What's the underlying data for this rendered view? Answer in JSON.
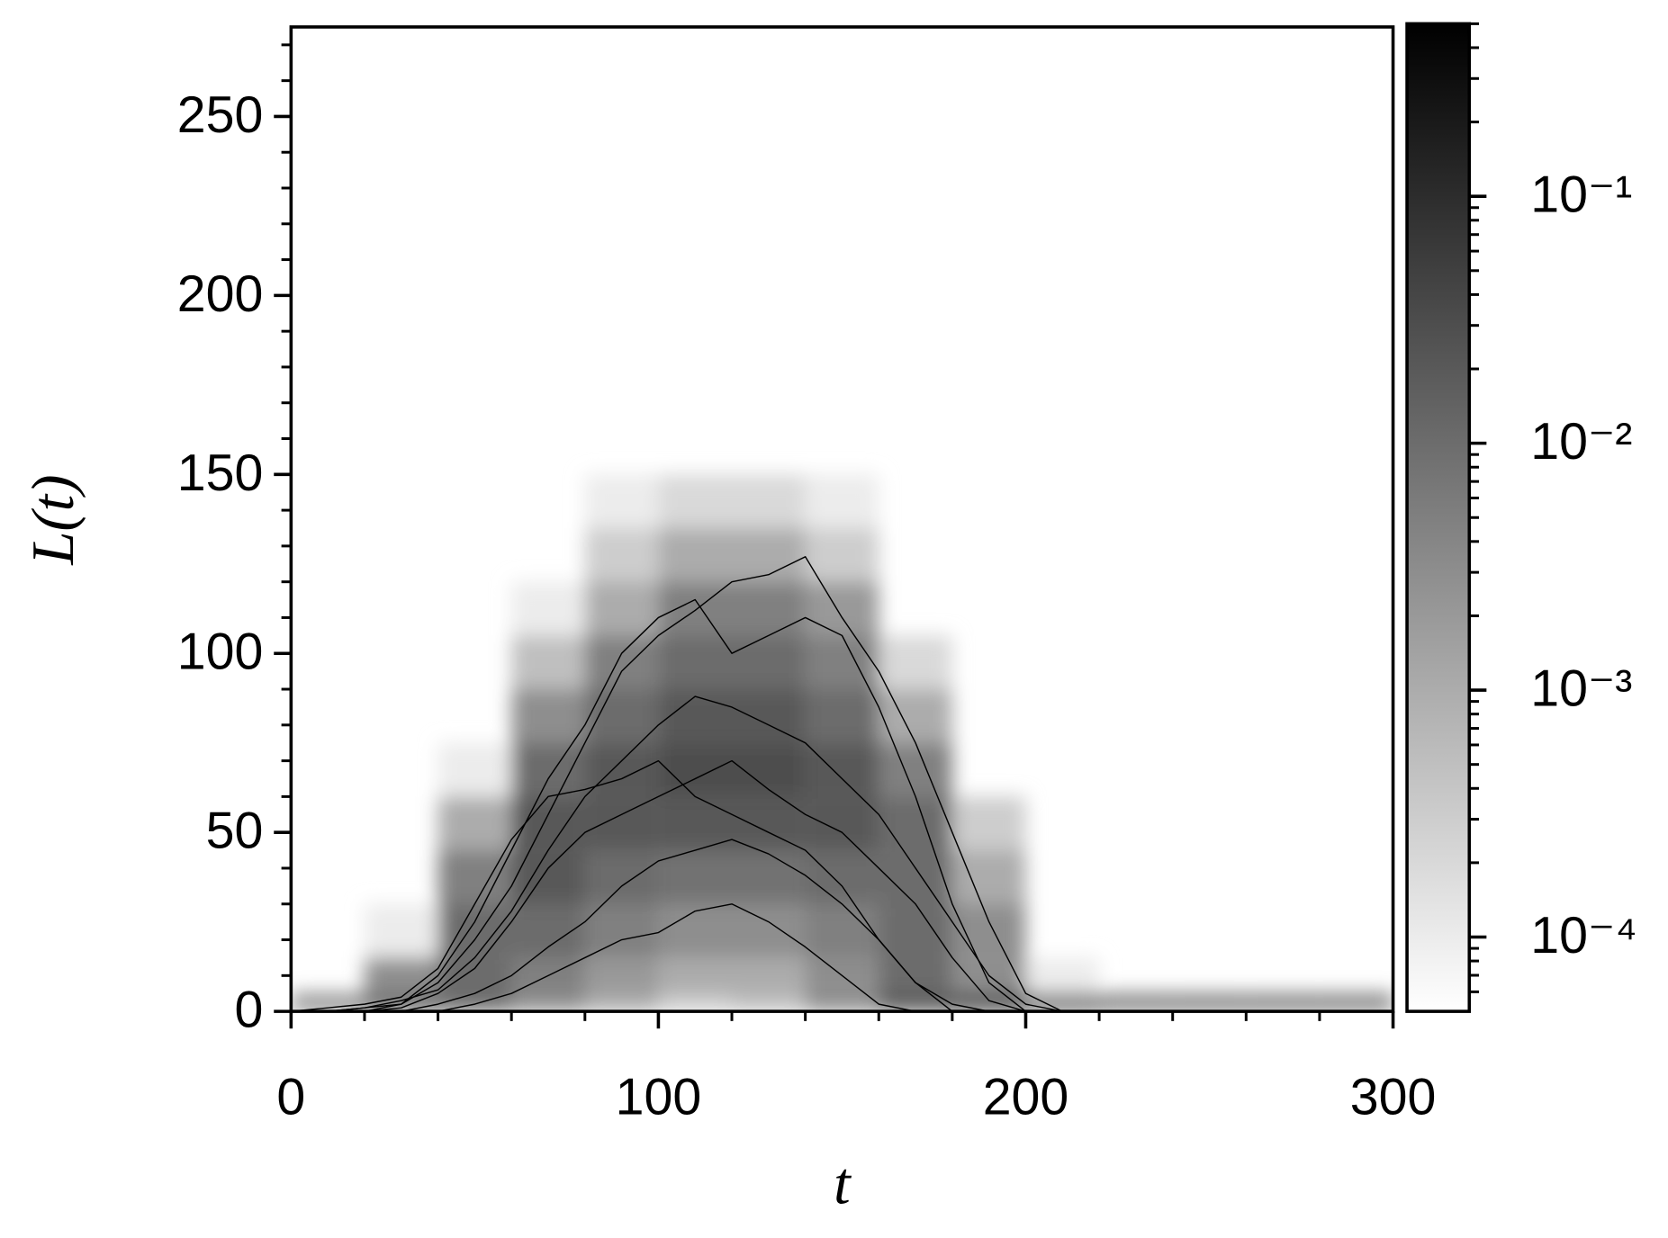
{
  "chart_data": {
    "type": "heatmap",
    "xlabel": "t",
    "ylabel": "L(t)",
    "xlim": [
      0,
      300
    ],
    "xticks": [
      0,
      100,
      200,
      300
    ],
    "xminorticks": [
      20,
      40,
      60,
      80,
      120,
      140,
      160,
      180,
      220,
      240,
      260,
      280
    ],
    "ylim": [
      0,
      275
    ],
    "yticks": [
      0,
      50,
      100,
      150,
      200,
      250
    ],
    "yminorticks": [
      10,
      20,
      30,
      40,
      60,
      70,
      80,
      90,
      110,
      120,
      130,
      140,
      160,
      170,
      180,
      190,
      210,
      220,
      230,
      240,
      260,
      270
    ],
    "colorbar": {
      "scale": "log",
      "colormap": "gray_r",
      "clim": [
        5e-05,
        0.5
      ],
      "ticks": [
        {
          "value": 0.0001,
          "label": "10⁻⁴"
        },
        {
          "value": 0.001,
          "label": "10⁻³"
        },
        {
          "value": 0.01,
          "label": "10⁻²"
        },
        {
          "value": 0.1,
          "label": "10⁻¹"
        }
      ],
      "minorticks": [
        6e-05,
        7e-05,
        8e-05,
        9e-05,
        0.0002,
        0.0003,
        0.0004,
        0.0005,
        0.0006,
        0.0007,
        0.0008,
        0.0009,
        0.002,
        0.003,
        0.004,
        0.005,
        0.006,
        0.007,
        0.008,
        0.009,
        0.02,
        0.03,
        0.04,
        0.05,
        0.06,
        0.07,
        0.08,
        0.09,
        0.2,
        0.3,
        0.4,
        0.5
      ]
    },
    "xedges": [
      0,
      20,
      40,
      60,
      80,
      100,
      120,
      140,
      160,
      180,
      200,
      220,
      240,
      260,
      280,
      300
    ],
    "yedges": [
      0,
      5,
      15,
      30,
      45,
      60,
      75,
      90,
      105,
      120,
      135,
      150
    ],
    "z": [
      [
        0.003,
        0.01,
        0.01,
        0.003,
        0.001,
        0.0003,
        0.0005,
        0.003,
        0.02,
        0.03,
        0.01,
        0.005,
        0.005,
        0.005,
        0.005
      ],
      [
        null,
        0.003,
        0.01,
        0.005,
        0.002,
        0.001,
        0.001,
        0.003,
        0.01,
        0.003,
        0.0001,
        null,
        null,
        null,
        null
      ],
      [
        null,
        0.0001,
        0.01,
        0.01,
        0.005,
        0.003,
        0.003,
        0.005,
        0.01,
        0.003,
        null,
        null,
        null,
        null,
        null
      ],
      [
        null,
        null,
        0.005,
        0.02,
        0.01,
        0.008,
        0.008,
        0.01,
        0.01,
        0.001,
        null,
        null,
        null,
        null,
        null
      ],
      [
        null,
        null,
        0.001,
        0.02,
        0.02,
        0.02,
        0.02,
        0.02,
        0.01,
        0.0003,
        null,
        null,
        null,
        null,
        null
      ],
      [
        null,
        null,
        0.0001,
        0.01,
        0.02,
        0.03,
        0.03,
        0.02,
        0.005,
        null,
        null,
        null,
        null,
        null,
        null
      ],
      [
        null,
        null,
        null,
        0.003,
        0.01,
        0.02,
        0.02,
        0.01,
        0.001,
        null,
        null,
        null,
        null,
        null,
        null
      ],
      [
        null,
        null,
        null,
        0.0005,
        0.005,
        0.01,
        0.01,
        0.005,
        0.0002,
        null,
        null,
        null,
        null,
        null,
        null
      ],
      [
        null,
        null,
        null,
        0.0001,
        0.001,
        0.005,
        0.005,
        0.002,
        null,
        null,
        null,
        null,
        null,
        null,
        null
      ],
      [
        null,
        null,
        null,
        null,
        0.0003,
        0.001,
        0.001,
        0.0003,
        null,
        null,
        null,
        null,
        null,
        null,
        null
      ],
      [
        null,
        null,
        null,
        null,
        0.0001,
        0.0002,
        0.0002,
        0.0001,
        null,
        null,
        null,
        null,
        null,
        null,
        null
      ]
    ],
    "x": [
      0,
      10,
      20,
      30,
      40,
      50,
      60,
      70,
      80,
      90,
      100,
      110,
      120,
      130,
      140,
      150,
      160,
      170,
      180,
      190,
      200,
      210,
      220,
      230,
      240,
      250,
      260,
      270,
      280,
      290,
      300
    ],
    "series": [
      {
        "color": "#000000",
        "values": [
          0,
          0,
          0,
          2,
          8,
          20,
          35,
          55,
          75,
          95,
          105,
          112,
          120,
          122,
          127,
          110,
          95,
          75,
          50,
          25,
          5,
          0,
          0,
          0,
          0,
          0,
          0,
          0,
          0,
          0,
          0
        ]
      },
      {
        "color": "#000000",
        "values": [
          0,
          0,
          1,
          3,
          6,
          15,
          28,
          45,
          60,
          70,
          80,
          88,
          85,
          80,
          75,
          65,
          55,
          40,
          25,
          10,
          2,
          0,
          0,
          0,
          0,
          0,
          0,
          0,
          0,
          0,
          0
        ]
      },
      {
        "color": "#000000",
        "values": [
          0,
          0,
          0,
          1,
          5,
          12,
          25,
          40,
          50,
          55,
          60,
          65,
          70,
          62,
          55,
          50,
          40,
          30,
          15,
          3,
          0,
          0,
          0,
          0,
          0,
          0,
          0,
          0,
          0,
          0,
          0
        ]
      },
      {
        "color": "#000000",
        "values": [
          0,
          0,
          0,
          0,
          2,
          5,
          10,
          18,
          25,
          35,
          42,
          45,
          48,
          44,
          38,
          30,
          20,
          8,
          0,
          0,
          0,
          0,
          0,
          0,
          0,
          0,
          0,
          0,
          0,
          0,
          0
        ]
      },
      {
        "color": "#000000",
        "values": [
          0,
          0,
          0,
          0,
          0,
          2,
          5,
          10,
          15,
          20,
          22,
          28,
          30,
          25,
          18,
          10,
          2,
          0,
          0,
          0,
          0,
          0,
          0,
          0,
          0,
          0,
          0,
          0,
          0,
          0,
          0
        ]
      },
      {
        "color": "#000000",
        "values": [
          0,
          0,
          1,
          2,
          10,
          25,
          45,
          65,
          80,
          100,
          110,
          115,
          100,
          105,
          110,
          105,
          85,
          60,
          30,
          8,
          0,
          0,
          0,
          0,
          0,
          0,
          0,
          0,
          0,
          0,
          0
        ]
      },
      {
        "color": "#000000",
        "values": [
          0,
          1,
          2,
          4,
          12,
          30,
          48,
          60,
          62,
          65,
          70,
          60,
          55,
          50,
          45,
          35,
          20,
          8,
          2,
          0,
          0,
          0,
          0,
          0,
          0,
          0,
          0,
          0,
          0,
          0,
          0
        ]
      }
    ]
  }
}
